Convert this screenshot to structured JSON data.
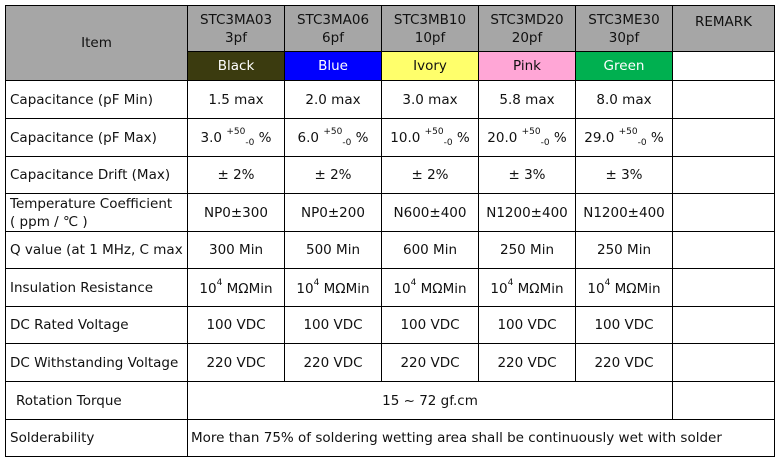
{
  "header": {
    "item": "Item",
    "remark": "REMARK",
    "models": [
      {
        "code": "STC3MA03",
        "cap": "3pf",
        "color_name": "Black",
        "bg": "#3b3b0f",
        "fg": "#ffffff"
      },
      {
        "code": "STC3MA06",
        "cap": "6pf",
        "color_name": "Blue",
        "bg": "#0000ff",
        "fg": "#ffffff"
      },
      {
        "code": "STC3MB10",
        "cap": "10pf",
        "color_name": "Ivory",
        "bg": "#ffff6b",
        "fg": "#111111"
      },
      {
        "code": "STC3MD20",
        "cap": "20pf",
        "color_name": "Pink",
        "bg": "#ffa6d6",
        "fg": "#111111"
      },
      {
        "code": "STC3ME30",
        "cap": "30pf",
        "color_name": "Green",
        "bg": "#00b050",
        "fg": "#ffffff"
      }
    ]
  },
  "rows": {
    "cap_min": {
      "label": "Capacitance (pF Min)",
      "values": [
        "1.5 max",
        "2.0 max",
        "3.0 max",
        "5.8 max",
        "8.0 max"
      ]
    },
    "cap_max": {
      "label": "Capacitance (pF Max)",
      "values": [
        "3.0",
        "6.0",
        "10.0",
        "20.0",
        "29.0"
      ],
      "tol_plus": "+50",
      "tol_minus": "-0",
      "unit": "%"
    },
    "drift": {
      "label": "Capacitance Drift (Max)",
      "values": [
        "± 2%",
        "± 2%",
        "± 2%",
        "± 3%",
        "± 3%"
      ]
    },
    "temp": {
      "label_line1": "Temperature Coefficient",
      "label_line2": "( ppm / ℃ )",
      "values": [
        "NP0±300",
        "NP0±200",
        "N600±400",
        "N1200±400",
        "N1200±400"
      ]
    },
    "q": {
      "label": "Q value (at 1 MHz, C max",
      "values": [
        "300 Min",
        "500 Min",
        "600 Min",
        "250 Min",
        "250 Min"
      ]
    },
    "insulation": {
      "label": "Insulation Resistance",
      "base": "10",
      "exp": "4",
      "unit": "MΩMin"
    },
    "dc_rated": {
      "label": "DC Rated Voltage",
      "values": [
        "100 VDC",
        "100 VDC",
        "100 VDC",
        "100 VDC",
        "100 VDC"
      ]
    },
    "dc_withstand": {
      "label": "DC Withstanding Voltage",
      "values": [
        "220 VDC",
        "220 VDC",
        "220 VDC",
        "220 VDC",
        "220 VDC"
      ]
    },
    "torque": {
      "label": "Rotation Torque",
      "value": "15 ~ 72 gf.cm"
    },
    "solder": {
      "label": "Solderability",
      "value": "More than 75% of soldering wetting area shall be continuously wet with solder"
    }
  }
}
